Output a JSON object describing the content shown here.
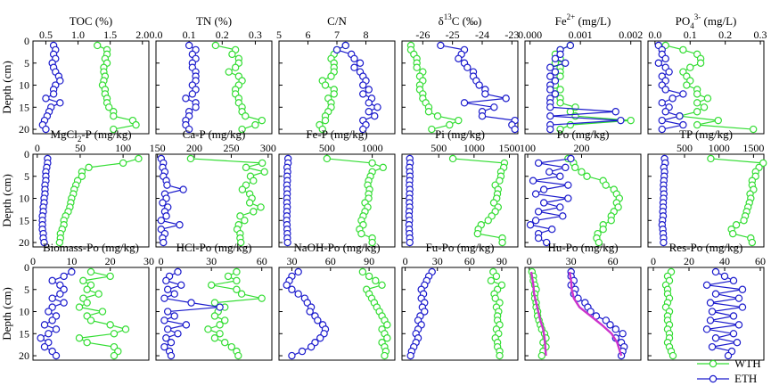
{
  "chart_data": {
    "type": "profile-grid",
    "y_label": "Depth (cm)",
    "y_ticks": [
      0,
      5,
      10,
      15,
      20
    ],
    "y_range": [
      0,
      21
    ],
    "depths": [
      1,
      2,
      3,
      4,
      5,
      6,
      7,
      8,
      9,
      10,
      11,
      12,
      13,
      14,
      15,
      16,
      17,
      18,
      19,
      20
    ],
    "legend": [
      {
        "key": "WTH",
        "label": "WTH",
        "color": "#33dd33"
      },
      {
        "key": "ETH",
        "label": "ETH",
        "color": "#1a1acc"
      }
    ],
    "fit_line": {
      "panel": "hu_po",
      "color": "#cc33cc"
    },
    "panels": [
      {
        "id": "toc",
        "title": "TOC (%)",
        "xlim": [
          0.3,
          2.1
        ],
        "ticks": [
          0.5,
          1.0,
          1.5,
          2.0
        ],
        "tick_labels": [
          "0.5",
          "1.0",
          "1.5",
          "2.0"
        ],
        "WTH": [
          1.3,
          1.45,
          1.45,
          1.42,
          1.45,
          1.4,
          1.4,
          1.42,
          1.4,
          1.38,
          1.42,
          1.42,
          1.45,
          1.45,
          1.48,
          1.55,
          1.55,
          1.85,
          1.9,
          1.55
        ],
        "ETH": [
          0.62,
          0.65,
          0.62,
          0.65,
          0.6,
          0.62,
          0.65,
          0.7,
          0.72,
          0.65,
          0.62,
          0.62,
          0.5,
          0.72,
          0.58,
          0.55,
          0.52,
          0.48,
          0.45,
          0.5
        ]
      },
      {
        "id": "tn",
        "title": "TN (%)",
        "xlim": [
          0.0,
          0.35
        ],
        "ticks": [
          0.0,
          0.1,
          0.2,
          0.3
        ],
        "tick_labels": [
          "0.0",
          "0.1",
          "0.2",
          "0.3"
        ],
        "WTH": [
          0.18,
          0.24,
          0.23,
          0.25,
          0.25,
          0.24,
          0.22,
          0.25,
          0.26,
          0.25,
          0.24,
          0.24,
          0.25,
          0.25,
          0.26,
          0.26,
          0.27,
          0.32,
          0.3,
          0.26
        ],
        "ETH": [
          0.1,
          0.12,
          0.11,
          0.12,
          0.11,
          0.11,
          0.12,
          0.12,
          0.12,
          0.11,
          0.12,
          0.11,
          0.09,
          0.12,
          0.12,
          0.1,
          0.1,
          0.09,
          0.09,
          0.1
        ]
      },
      {
        "id": "cn",
        "title": "C/N",
        "xlim": [
          5,
          9
        ],
        "ticks": [
          5,
          6,
          7,
          8
        ],
        "tick_labels": [
          "5",
          "6",
          "7",
          "8"
        ],
        "WTH": [
          7.3,
          7.0,
          6.9,
          6.8,
          6.9,
          6.9,
          6.9,
          6.8,
          6.5,
          6.6,
          6.9,
          6.9,
          6.7,
          6.8,
          6.8,
          6.7,
          6.6,
          6.6,
          6.4,
          6.5
        ],
        "ETH": [
          7.3,
          7.0,
          7.5,
          7.6,
          7.8,
          7.6,
          7.8,
          7.9,
          8.0,
          7.9,
          8.1,
          7.9,
          8.2,
          8.1,
          8.4,
          8.1,
          8.3,
          7.9,
          8.0,
          7.9
        ]
      },
      {
        "id": "d13c",
        "title": "δ13C (‰)",
        "title_main": "δ",
        "title_sup": "13",
        "title_rest": "C (‰)",
        "xlim": [
          -26.7,
          -22.8
        ],
        "ticks": [
          -26,
          -25,
          -24,
          -23
        ],
        "tick_labels": [
          "-26",
          "-25",
          "-24",
          "-23"
        ],
        "WTH": [
          -26.4,
          -26.4,
          -26.3,
          -26.2,
          -26.2,
          -26.2,
          -26.0,
          -26.1,
          -26.0,
          -26.1,
          -26.1,
          -26.0,
          -26.0,
          -25.9,
          -25.8,
          -25.8,
          -25.5,
          -24.8,
          -25.1,
          -25.7
        ],
        "ETH": [
          -25.4,
          -24.6,
          -24.7,
          -24.8,
          -24.6,
          -24.5,
          -24.3,
          -24.3,
          -24.2,
          -24.1,
          -23.9,
          -23.9,
          -23.2,
          -24.6,
          -23.6,
          -24.0,
          -24.0,
          -22.9,
          -23.0,
          -22.9
        ]
      },
      {
        "id": "fe2",
        "title": "Fe2+ (mg/L)",
        "title_main": "Fe",
        "title_sup": "2+",
        "title_rest": " (mg/L)",
        "xlim": [
          -0.0001,
          0.0022
        ],
        "ticks": [
          0.0,
          0.001,
          0.002
        ],
        "tick_labels": [
          "0.000",
          "0.001",
          "0.002"
        ],
        "WTH": [
          0.0008,
          0.0006,
          0.0005,
          0.0006,
          0.0005,
          0.0006,
          0.0006,
          0.0006,
          0.0005,
          0.0005,
          0.0006,
          0.0005,
          0.0006,
          0.0006,
          0.0009,
          0.0008,
          0.0009,
          0.002,
          0.0008,
          0.0006
        ],
        "ETH": [
          0.0008,
          0.0006,
          0.0006,
          0.0005,
          0.0007,
          0.0004,
          0.0005,
          0.0004,
          0.0005,
          0.0004,
          0.0004,
          0.0005,
          0.0004,
          0.0004,
          0.0004,
          0.0017,
          0.0004,
          0.0018,
          0.0004,
          0.0004
        ]
      },
      {
        "id": "po4",
        "title": "PO43- (mg/L)",
        "title_main": "PO",
        "title_sub": "4",
        "title_sup": "3-",
        "title_rest": " (mg/L)",
        "xlim": [
          -0.02,
          0.31
        ],
        "ticks": [
          0.0,
          0.1,
          0.2,
          0.3
        ],
        "tick_labels": [
          "0.0",
          "0.1",
          "0.2",
          "0.3"
        ],
        "WTH": [
          0.03,
          0.08,
          0.12,
          0.13,
          0.13,
          0.1,
          0.08,
          0.09,
          0.1,
          0.09,
          0.12,
          0.12,
          0.15,
          0.12,
          0.14,
          0.12,
          0.07,
          0.18,
          0.12,
          0.28
        ],
        "ETH": [
          0.01,
          0.02,
          0.02,
          0.03,
          0.01,
          0.03,
          0.04,
          0.02,
          0.03,
          0.02,
          0.03,
          0.08,
          0.05,
          0.02,
          0.04,
          0.03,
          0.07,
          0.02,
          0.08,
          0.02
        ]
      },
      {
        "id": "mgcl2_p",
        "title": "MgCl2-P (mg/kg)",
        "title_main": "MgCl",
        "title_sub": "2",
        "title_rest": "-P (mg/kg)",
        "xlim": [
          -5,
          130
        ],
        "ticks": [
          0,
          50,
          100
        ],
        "tick_labels": [
          "0",
          "50",
          "100"
        ],
        "WTH": [
          118,
          100,
          60,
          52,
          52,
          47,
          45,
          43,
          42,
          40,
          39,
          38,
          36,
          33,
          31,
          31,
          29,
          27,
          27,
          26
        ],
        "ETH": [
          12,
          12,
          11,
          10,
          10,
          10,
          9,
          9,
          9,
          8,
          8,
          7,
          7,
          6,
          6,
          6,
          6,
          7,
          7,
          8
        ]
      },
      {
        "id": "ca_p",
        "title": "Ca-P (mg/kg)",
        "xlim": [
          148,
          305
        ],
        "ticks": [
          150,
          200,
          250,
          300
        ],
        "tick_labels": [
          "150",
          "200",
          "250",
          "300"
        ],
        "WTH": [
          195,
          292,
          270,
          295,
          276,
          280,
          270,
          265,
          275,
          278,
          275,
          290,
          280,
          262,
          268,
          260,
          258,
          262,
          262,
          263
        ],
        "ETH": [
          155,
          158,
          157,
          160,
          158,
          162,
          163,
          185,
          160,
          162,
          157,
          164,
          160,
          162,
          155,
          180,
          155,
          160,
          157,
          158
        ]
      },
      {
        "id": "fe_p",
        "title": "Fe-P (mg/kg)",
        "xlim": [
          -30,
          1250
        ],
        "ticks": [
          500,
          1000
        ],
        "tick_labels": [
          "500",
          "1000"
        ],
        "WTH": [
          500,
          1000,
          1120,
          1000,
          980,
          960,
          950,
          970,
          960,
          960,
          920,
          950,
          920,
          900,
          880,
          900,
          860,
          880,
          1000,
          1000
        ],
        "ETH": [
          70,
          70,
          60,
          65,
          60,
          62,
          58,
          60,
          60,
          58,
          58,
          60,
          58,
          57,
          55,
          58,
          60,
          62,
          62,
          65
        ]
      },
      {
        "id": "pi",
        "title": "Pi (mg/kg)",
        "xlim": [
          -20,
          1620
        ],
        "ticks": [
          500,
          1000,
          1500
        ],
        "tick_labels": [
          "500",
          "1000",
          "1500"
        ],
        "WTH": [
          700,
          1430,
          1420,
          1380,
          1380,
          1360,
          1300,
          1340,
          1330,
          1320,
          1280,
          1340,
          1300,
          1250,
          1200,
          1100,
          1060,
          1050,
          1400,
          1400
        ],
        "ETH": [
          90,
          95,
          85,
          90,
          92,
          88,
          85,
          90,
          88,
          85,
          85,
          88,
          82,
          80,
          85,
          80,
          82,
          85,
          90,
          90
        ]
      },
      {
        "id": "po",
        "title": "Po (mg/kg)",
        "xlim": [
          95,
          310
        ],
        "ticks": [
          100,
          200
        ],
        "tick_labels": [
          "100",
          "200"
        ],
        "WTH": [
          175,
          185,
          188,
          200,
          210,
          240,
          245,
          260,
          265,
          270,
          265,
          268,
          260,
          255,
          255,
          240,
          240,
          230,
          228,
          232
        ],
        "ETH": [
          180,
          120,
          170,
          140,
          160,
          110,
          175,
          130,
          115,
          175,
          130,
          160,
          120,
          165,
          115,
          105,
          145,
          120,
          120,
          135
        ]
      },
      {
        "id": "tp",
        "title": "TP (mg/kg)",
        "xlim": [
          -30,
          1650
        ],
        "ticks": [
          500,
          1000,
          1500
        ],
        "tick_labels": [
          "500",
          "1000",
          "1500"
        ],
        "WTH": [
          880,
          1640,
          1580,
          1530,
          1530,
          1480,
          1480,
          1500,
          1450,
          1460,
          1440,
          1420,
          1400,
          1380,
          1360,
          1250,
          1180,
          1200,
          1460,
          1480
        ],
        "ETH": [
          210,
          220,
          200,
          210,
          205,
          200,
          195,
          195,
          200,
          195,
          190,
          190,
          185,
          190,
          180,
          175,
          185,
          190,
          195,
          195
        ]
      },
      {
        "id": "biomass_po",
        "title": "Biomass-Po (mg/kg)",
        "xlim": [
          0,
          30
        ],
        "ticks": [
          0,
          10,
          20,
          30
        ],
        "tick_labels": [
          "0",
          "10",
          "20",
          "30"
        ],
        "WTH": [
          15,
          20,
          13,
          15,
          14,
          17,
          13,
          14,
          12,
          18,
          14,
          15,
          20,
          24,
          21,
          12,
          14,
          21,
          22,
          21
        ],
        "ETH": [
          10,
          8,
          5,
          7,
          8,
          7,
          5,
          8,
          5,
          4,
          6,
          5,
          3,
          6,
          4,
          2,
          4,
          3,
          5,
          6
        ]
      },
      {
        "id": "hcl_po",
        "title": "HCl-Po (mg/kg)",
        "xlim": [
          -3,
          66
        ],
        "ticks": [
          0,
          30,
          60
        ],
        "tick_labels": [
          "0",
          "30",
          "60"
        ],
        "WTH": [
          45,
          40,
          45,
          30,
          45,
          48,
          60,
          32,
          38,
          34,
          32,
          38,
          35,
          28,
          35,
          32,
          38,
          42,
          45,
          46
        ],
        "ETH": [
          10,
          5,
          3,
          12,
          4,
          8,
          2,
          18,
          35,
          4,
          8,
          2,
          15,
          4,
          10,
          3,
          6,
          2,
          5,
          6
        ]
      },
      {
        "id": "naoh_po",
        "title": "NaOH-Po (mg/kg)",
        "xlim": [
          20,
          110
        ],
        "ticks": [
          30,
          60,
          90
        ],
        "tick_labels": [
          "30",
          "60",
          "90"
        ],
        "WTH": [
          85,
          90,
          95,
          100,
          88,
          90,
          92,
          94,
          96,
          98,
          100,
          102,
          104,
          100,
          102,
          104,
          100,
          102,
          103,
          102
        ],
        "ETH": [
          35,
          30,
          28,
          26,
          30,
          35,
          40,
          42,
          45,
          44,
          48,
          50,
          54,
          56,
          55,
          52,
          48,
          45,
          38,
          30
        ]
      },
      {
        "id": "fu_po",
        "title": "Fu-Po (mg/kg)",
        "xlim": [
          -3,
          105
        ],
        "ticks": [
          0,
          30,
          60,
          90
        ],
        "tick_labels": [
          "0",
          "30",
          "60",
          "90"
        ],
        "WTH": [
          82,
          85,
          80,
          90,
          86,
          83,
          84,
          88,
          85,
          87,
          86,
          86,
          88,
          85,
          87,
          84,
          86,
          86,
          88,
          88
        ],
        "ETH": [
          25,
          22,
          20,
          18,
          15,
          17,
          15,
          18,
          16,
          18,
          14,
          12,
          15,
          12,
          10,
          12,
          10,
          8,
          6,
          5
        ]
      },
      {
        "id": "hu_po",
        "title": "Hu-Po (mg/kg)",
        "xlim": [
          -3,
          80
        ],
        "ticks": [
          0,
          30,
          60
        ],
        "tick_labels": [
          "0",
          "30",
          "60"
        ],
        "WTH": [
          2,
          3,
          3,
          4,
          5,
          4,
          4,
          5,
          5,
          6,
          6,
          7,
          8,
          9,
          11,
          12,
          10,
          12,
          10,
          9
        ],
        "ETH": [
          30,
          30,
          32,
          30,
          33,
          32,
          35,
          40,
          42,
          44,
          48,
          55,
          58,
          62,
          67,
          62,
          66,
          68,
          67,
          66
        ],
        "fit_WTH": [
          [
            1,
            1.5
          ],
          [
            2,
            2
          ],
          [
            4,
            3
          ],
          [
            6,
            3.5
          ],
          [
            8,
            5
          ],
          [
            10,
            6.5
          ],
          [
            12,
            8
          ],
          [
            14,
            10
          ],
          [
            16,
            11
          ],
          [
            18,
            11.5
          ],
          [
            20,
            12
          ]
        ],
        "fit_ETH": [
          [
            1,
            29
          ],
          [
            3,
            30
          ],
          [
            5,
            30.5
          ],
          [
            7,
            32
          ],
          [
            9,
            36
          ],
          [
            11,
            44
          ],
          [
            13,
            52
          ],
          [
            15,
            59
          ],
          [
            17,
            63
          ],
          [
            19,
            65
          ],
          [
            20,
            66
          ]
        ]
      },
      {
        "id": "res_po",
        "title": "Res-Po (mg/kg)",
        "xlim": [
          -3,
          62
        ],
        "ticks": [
          0,
          20,
          40,
          60
        ],
        "tick_labels": [
          "0",
          "20",
          "40",
          "60"
        ],
        "WTH": [
          10,
          8,
          9,
          7,
          8,
          8,
          9,
          8,
          7,
          9,
          8,
          8,
          9,
          8,
          9,
          9,
          8,
          9,
          10,
          11
        ],
        "ETH": [
          35,
          40,
          45,
          30,
          50,
          35,
          48,
          32,
          50,
          33,
          45,
          32,
          48,
          30,
          45,
          35,
          47,
          33,
          44,
          42
        ]
      }
    ]
  }
}
